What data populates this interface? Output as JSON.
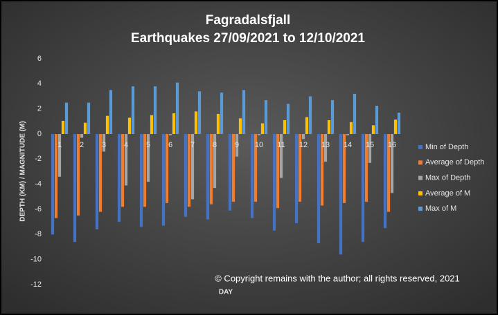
{
  "chart_data": {
    "type": "bar",
    "title": "Fagradalsfjall",
    "subtitle": "Earthquakes 27/09/2021 to 12/10/2021",
    "x_label": "DAY",
    "y_label": "DEPTH (KM) / MAGNITUDE (M)",
    "annotation": "© Copyright remains with the author; all rights reserved, 2021",
    "categories": [
      "1",
      "2",
      "3",
      "4",
      "5",
      "6",
      "7",
      "8",
      "9",
      "10",
      "11",
      "12",
      "13",
      "14",
      "15",
      "16"
    ],
    "series": [
      {
        "name": "Min of Depth",
        "color": "#4472c4",
        "values": [
          -8.0,
          -8.6,
          -7.6,
          -7.0,
          -7.4,
          -7.3,
          -6.6,
          -6.8,
          -6.1,
          -6.7,
          -7.7,
          -7.1,
          -8.7,
          -9.6,
          -8.6,
          -7.5
        ]
      },
      {
        "name": "Average of Depth",
        "color": "#ed7d31",
        "values": [
          -6.7,
          -6.5,
          -6.2,
          -5.8,
          -5.8,
          -5.5,
          -5.8,
          -5.6,
          -5.4,
          -5.4,
          -5.9,
          -5.4,
          -5.7,
          -5.5,
          -5.4,
          -6.2
        ]
      },
      {
        "name": "Max of Depth",
        "color": "#a5a5a5",
        "values": [
          -3.4,
          -0.3,
          -1.4,
          -4.1,
          -3.8,
          -0.1,
          -5.2,
          -4.3,
          -1.8,
          -0.1,
          -3.5,
          -0.4,
          -2.2,
          -0.1,
          -2.3,
          -4.7
        ]
      },
      {
        "name": "Average of M",
        "color": "#ffc000",
        "values": [
          1.05,
          0.9,
          1.45,
          1.3,
          1.5,
          1.65,
          1.8,
          1.6,
          1.25,
          0.85,
          1.1,
          1.35,
          1.1,
          0.95,
          0.7,
          1.15
        ]
      },
      {
        "name": "Max of M",
        "color": "#5b9bd5",
        "values": [
          2.5,
          2.5,
          3.5,
          3.8,
          3.8,
          4.1,
          3.4,
          3.3,
          3.5,
          2.7,
          2.4,
          3.0,
          2.7,
          3.2,
          2.25,
          1.7
        ]
      }
    ],
    "ylim": [
      -12,
      6
    ],
    "yticks": [
      -12,
      -10,
      -8,
      -6,
      -4,
      -2,
      0,
      2,
      4,
      6
    ],
    "grid": false,
    "legend": "right"
  }
}
